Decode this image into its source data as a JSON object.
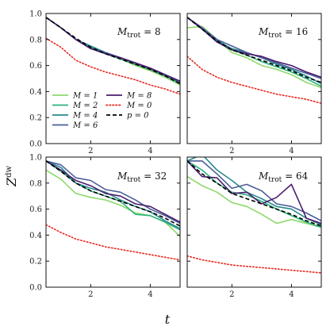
{
  "chart_data": {
    "type": "line",
    "xlabel": "t",
    "ylabel": "Z^dw",
    "x_ticks": [
      2,
      4
    ],
    "y_ticks": [
      0.0,
      0.2,
      0.4,
      0.6,
      0.8,
      1.0
    ],
    "xlim": [
      0.5,
      5.0
    ],
    "ylim": [
      0.0,
      1.0
    ],
    "legend": [
      {
        "label": "M = 1",
        "color": "#8ed86a",
        "style": "solid"
      },
      {
        "label": "M = 2",
        "color": "#2db37f",
        "style": "solid"
      },
      {
        "label": "M = 4",
        "color": "#2a8a8e",
        "style": "solid"
      },
      {
        "label": "M = 6",
        "color": "#4a5f9a",
        "style": "solid"
      },
      {
        "label": "M = 8",
        "color": "#4b1c6e",
        "style": "solid"
      },
      {
        "label": "M = 0",
        "color": "#e8281e",
        "style": "dotted"
      },
      {
        "label": "p = 0",
        "color": "#000000",
        "style": "dashed"
      }
    ],
    "x": [
      0.5,
      1.0,
      1.5,
      2.0,
      2.5,
      3.0,
      3.5,
      4.0,
      4.5,
      5.0
    ],
    "panels": [
      {
        "label": "M_trot = 8",
        "series": [
          {
            "name": "M = 1",
            "values": [
              0.97,
              0.89,
              0.8,
              0.74,
              0.69,
              0.65,
              0.6,
              0.56,
              0.51,
              0.45
            ]
          },
          {
            "name": "M = 2",
            "values": [
              0.97,
              0.89,
              0.8,
              0.74,
              0.69,
              0.65,
              0.61,
              0.57,
              0.52,
              0.46
            ]
          },
          {
            "name": "M = 4",
            "values": [
              0.97,
              0.89,
              0.8,
              0.75,
              0.7,
              0.66,
              0.61,
              0.57,
              0.52,
              0.47
            ]
          },
          {
            "name": "M = 6",
            "values": [
              0.97,
              0.89,
              0.8,
              0.73,
              0.7,
              0.66,
              0.62,
              0.58,
              0.53,
              0.47
            ]
          },
          {
            "name": "M = 8",
            "values": [
              0.97,
              0.89,
              0.8,
              0.73,
              0.69,
              0.66,
              0.62,
              0.58,
              0.53,
              0.48
            ]
          },
          {
            "name": "M = 0",
            "values": [
              0.81,
              0.74,
              0.64,
              0.59,
              0.55,
              0.52,
              0.49,
              0.45,
              0.42,
              0.38
            ]
          },
          {
            "name": "p = 0",
            "values": [
              0.97,
              0.89,
              0.81,
              0.74,
              0.69,
              0.65,
              0.61,
              0.57,
              0.52,
              0.46
            ]
          }
        ]
      },
      {
        "label": "M_trot = 16",
        "series": [
          {
            "name": "M = 1",
            "values": [
              0.89,
              0.9,
              0.8,
              0.7,
              0.66,
              0.6,
              0.57,
              0.53,
              0.47,
              0.43
            ]
          },
          {
            "name": "M = 2",
            "values": [
              0.97,
              0.89,
              0.8,
              0.72,
              0.68,
              0.63,
              0.59,
              0.55,
              0.5,
              0.44
            ]
          },
          {
            "name": "M = 4",
            "values": [
              0.97,
              0.88,
              0.79,
              0.73,
              0.7,
              0.66,
              0.61,
              0.57,
              0.52,
              0.46
            ]
          },
          {
            "name": "M = 6",
            "values": [
              0.97,
              0.89,
              0.8,
              0.75,
              0.7,
              0.66,
              0.62,
              0.58,
              0.54,
              0.5
            ]
          },
          {
            "name": "M = 8",
            "values": [
              0.97,
              0.88,
              0.78,
              0.72,
              0.69,
              0.67,
              0.63,
              0.6,
              0.55,
              0.51
            ]
          },
          {
            "name": "M = 0",
            "values": [
              0.67,
              0.57,
              0.51,
              0.47,
              0.44,
              0.41,
              0.38,
              0.36,
              0.34,
              0.31
            ]
          },
          {
            "name": "p = 0",
            "values": [
              0.97,
              0.88,
              0.79,
              0.72,
              0.68,
              0.64,
              0.6,
              0.56,
              0.51,
              0.47
            ]
          }
        ]
      },
      {
        "label": "M_trot = 32",
        "series": [
          {
            "name": "M = 1",
            "values": [
              0.9,
              0.83,
              0.72,
              0.69,
              0.67,
              0.63,
              0.57,
              0.55,
              0.5,
              0.39
            ]
          },
          {
            "name": "M = 2",
            "values": [
              0.97,
              0.89,
              0.8,
              0.74,
              0.7,
              0.66,
              0.56,
              0.55,
              0.5,
              0.44
            ]
          },
          {
            "name": "M = 4",
            "values": [
              0.97,
              0.92,
              0.8,
              0.76,
              0.73,
              0.67,
              0.62,
              0.58,
              0.51,
              0.45
            ]
          },
          {
            "name": "M = 6",
            "values": [
              0.97,
              0.94,
              0.84,
              0.82,
              0.75,
              0.73,
              0.67,
              0.6,
              0.55,
              0.49
            ]
          },
          {
            "name": "M = 8",
            "values": [
              0.97,
              0.9,
              0.82,
              0.78,
              0.72,
              0.7,
              0.64,
              0.62,
              0.56,
              0.5
            ]
          },
          {
            "name": "M = 0",
            "values": [
              0.48,
              0.42,
              0.37,
              0.34,
              0.31,
              0.29,
              0.27,
              0.25,
              0.23,
              0.21
            ]
          },
          {
            "name": "p = 0",
            "values": [
              0.97,
              0.89,
              0.8,
              0.74,
              0.7,
              0.66,
              0.62,
              0.58,
              0.53,
              0.47
            ]
          }
        ]
      },
      {
        "label": "M_trot = 64",
        "series": [
          {
            "name": "M = 1",
            "values": [
              0.85,
              0.78,
              0.73,
              0.65,
              0.62,
              0.56,
              0.49,
              0.52,
              0.49,
              0.46
            ]
          },
          {
            "name": "M = 2",
            "values": [
              0.97,
              0.9,
              0.8,
              0.73,
              0.71,
              0.66,
              0.6,
              0.55,
              0.5,
              0.46
            ]
          },
          {
            "name": "M = 4",
            "values": [
              0.97,
              1.02,
              0.9,
              0.82,
              0.73,
              0.68,
              0.62,
              0.6,
              0.53,
              0.48
            ]
          },
          {
            "name": "M = 6",
            "values": [
              0.97,
              0.97,
              0.87,
              0.76,
              0.79,
              0.74,
              0.64,
              0.62,
              0.57,
              0.51
            ]
          },
          {
            "name": "M = 8",
            "values": [
              0.97,
              0.85,
              0.84,
              0.72,
              0.73,
              0.64,
              0.69,
              0.79,
              0.53,
              0.49
            ]
          },
          {
            "name": "M = 0",
            "values": [
              0.24,
              0.21,
              0.19,
              0.17,
              0.16,
              0.15,
              0.14,
              0.13,
              0.12,
              0.11
            ]
          },
          {
            "name": "p = 0",
            "values": [
              0.97,
              0.87,
              0.8,
              0.72,
              0.68,
              0.64,
              0.6,
              0.56,
              0.51,
              0.47
            ]
          }
        ]
      }
    ]
  }
}
